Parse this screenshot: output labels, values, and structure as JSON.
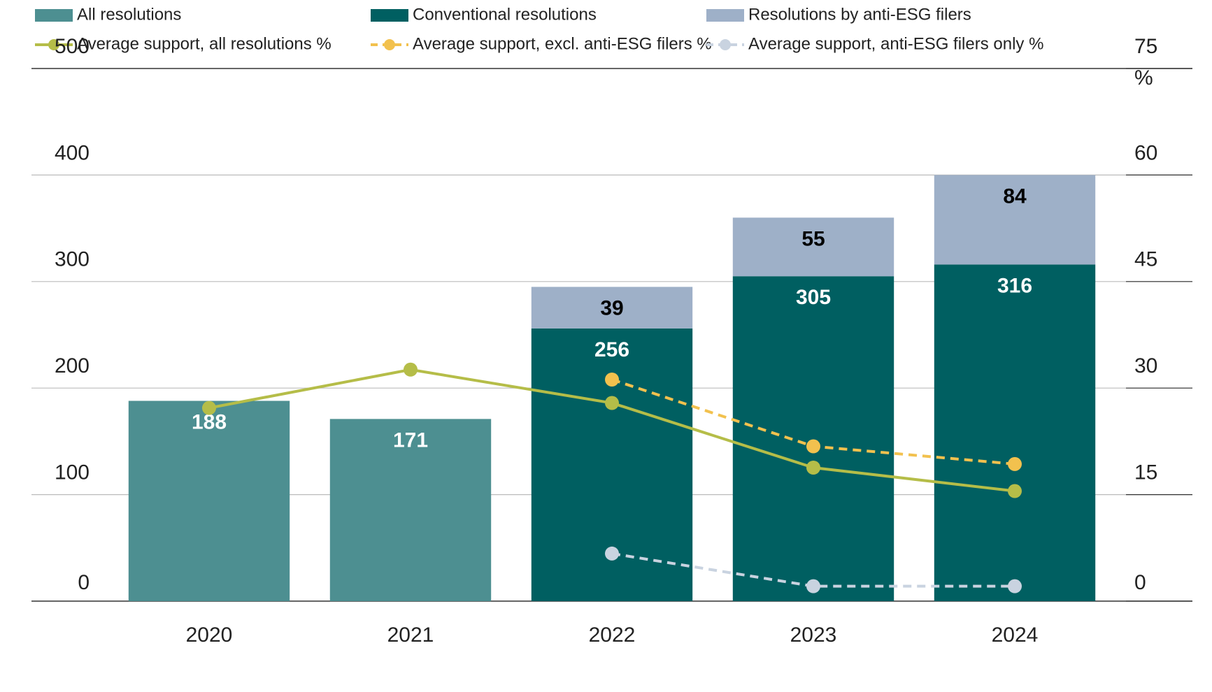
{
  "chart_data": {
    "type": "bar",
    "categories": [
      "2020",
      "2021",
      "2022",
      "2023",
      "2024"
    ],
    "stacked": true,
    "series": [
      {
        "name": "All resolutions",
        "type": "bar",
        "color": "#4d8f91",
        "label_color": "#ffffff",
        "values": [
          188,
          171,
          null,
          null,
          null
        ]
      },
      {
        "name": "Conventional resolutions",
        "type": "bar",
        "color": "#005f61",
        "label_color": "#ffffff",
        "values": [
          null,
          null,
          256,
          305,
          316
        ]
      },
      {
        "name": "Resolutions by anti-ESG filers",
        "type": "bar",
        "color": "#9eb0c8",
        "label_color": "#000000",
        "values": [
          null,
          null,
          39,
          55,
          84
        ]
      },
      {
        "name": "Average support, all resolutions %",
        "type": "line",
        "axis": "y2",
        "dashed": false,
        "color": "#b5bd48",
        "values": [
          27.2,
          32.6,
          27.9,
          18.8,
          15.5
        ]
      },
      {
        "name": "Average support, excl. anti-ESG filers %",
        "type": "line",
        "axis": "y2",
        "dashed": true,
        "color": "#f2c14e",
        "values": [
          null,
          null,
          31.2,
          21.8,
          19.3
        ]
      },
      {
        "name": "Average support, anti-ESG filers only %",
        "type": "line",
        "axis": "y2",
        "dashed": true,
        "color": "#c9d3e0",
        "values": [
          null,
          null,
          6.7,
          2.1,
          2.1
        ]
      }
    ],
    "ylim": [
      0,
      500
    ],
    "yticks": [
      0,
      100,
      200,
      300,
      400,
      500
    ],
    "y2lim": [
      0,
      75
    ],
    "y2ticks": [
      0,
      15,
      30,
      45,
      60,
      75
    ],
    "y2_unit": "%",
    "grid": true
  }
}
